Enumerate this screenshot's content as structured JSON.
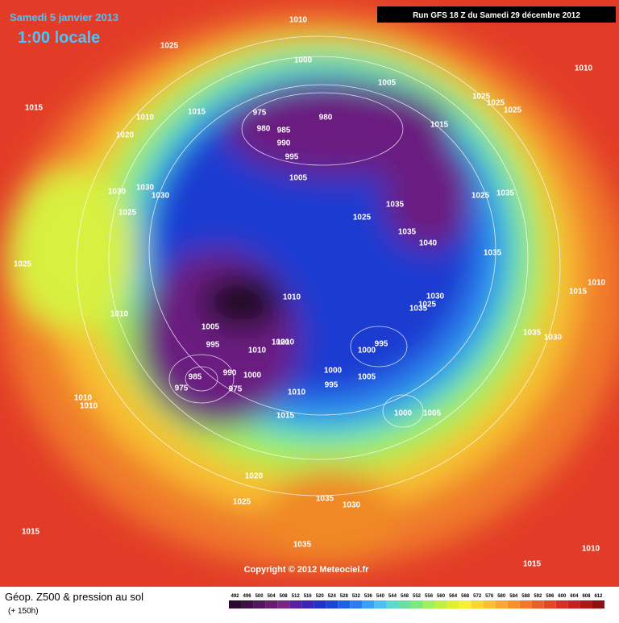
{
  "header": {
    "date": "Samedi 5 janvier 2013",
    "time": "1:00 locale",
    "run": "Run GFS 18 Z du Samedi 29 décembre 2012"
  },
  "footer": {
    "title": "Géop. Z500 & pression au sol",
    "lead": "(+ 150h)",
    "copyright": "Copyright © 2012 Meteociel.fr"
  },
  "colorbar": {
    "labels": [
      492,
      496,
      500,
      504,
      508,
      512,
      516,
      520,
      524,
      528,
      532,
      536,
      540,
      544,
      548,
      552,
      556,
      560,
      564,
      568,
      572,
      576,
      580,
      584,
      588,
      592,
      596,
      600,
      604,
      608,
      612
    ],
    "colors": [
      "#2a0a2e",
      "#3d0f45",
      "#52165c",
      "#661d70",
      "#7a2585",
      "#5a1fa0",
      "#3a25b8",
      "#2030c8",
      "#1a45d8",
      "#1e60e6",
      "#2a7cf0",
      "#3aa0f4",
      "#4cc0f0",
      "#5cd8d0",
      "#6ae0a0",
      "#7ee880",
      "#9ef060",
      "#c0f040",
      "#e0f030",
      "#f8f030",
      "#f8d830",
      "#f8c030",
      "#f8a830",
      "#f89028",
      "#f07828",
      "#e86028",
      "#e04828",
      "#d83028",
      "#c82020",
      "#b01818",
      "#901010"
    ]
  },
  "isobar_labels": [
    1010,
    1025,
    1000,
    1010,
    1015,
    1010,
    1015,
    975,
    980,
    1005,
    980,
    985,
    990,
    995,
    1020,
    1025,
    1025,
    1025,
    1015,
    1005,
    1030,
    1030,
    1030,
    1025,
    1025,
    1035,
    1035,
    1025,
    1035,
    1040,
    1035,
    1025,
    1010,
    1030,
    1025,
    1035,
    1010,
    1015,
    1010,
    1005,
    995,
    1010,
    1020,
    1010,
    1035,
    1030,
    995,
    1000,
    1000,
    1005,
    990,
    1000,
    985,
    975,
    975,
    995,
    1010,
    1000,
    1005,
    1010,
    1010,
    1015,
    1020,
    1025,
    1035,
    1030,
    1015,
    1035,
    1010,
    1015
  ]
}
